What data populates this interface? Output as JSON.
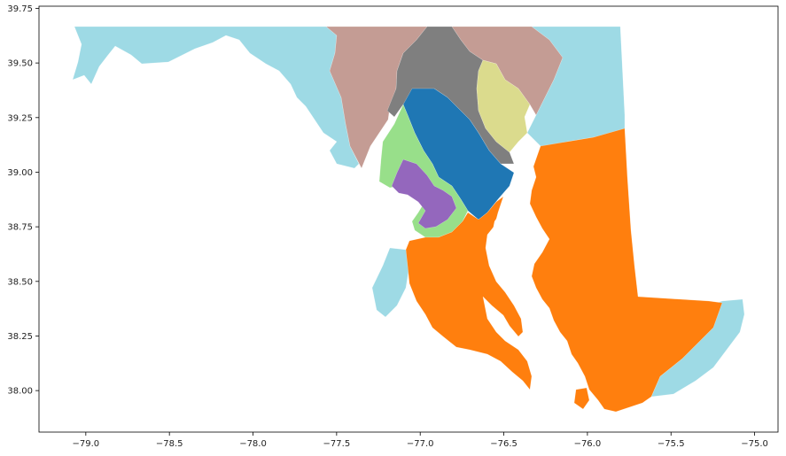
{
  "chart_data": {
    "type": "choropleth",
    "title": "",
    "xlabel": "",
    "ylabel": "",
    "xlim": [
      -79.28,
      -74.86
    ],
    "ylim": [
      37.81,
      39.76
    ],
    "xticks": [
      -79.0,
      -78.5,
      -78.0,
      -77.5,
      -77.0,
      -76.5,
      -76.0,
      -75.5,
      -75.0
    ],
    "xtick_labels": [
      "−79.0",
      "−78.5",
      "−78.0",
      "−77.5",
      "−77.0",
      "−76.5",
      "−76.0",
      "−75.5",
      "−75.0"
    ],
    "yticks": [
      38.0,
      38.25,
      38.5,
      38.75,
      39.0,
      39.25,
      39.5,
      39.75
    ],
    "ytick_labels": [
      "38.00",
      "38.25",
      "38.50",
      "38.75",
      "39.00",
      "39.25",
      "39.50",
      "39.75"
    ],
    "grid": false,
    "legend": "none",
    "regions": [
      {
        "key": "light-blue",
        "color": "#9edae5"
      },
      {
        "key": "brown",
        "color": "#c49c94"
      },
      {
        "key": "gray",
        "color": "#7f7f7f"
      },
      {
        "key": "olive",
        "color": "#dbdb8d"
      },
      {
        "key": "blue",
        "color": "#1f77b4"
      },
      {
        "key": "green",
        "color": "#98df8a"
      },
      {
        "key": "purple",
        "color": "#9467bd"
      },
      {
        "key": "orange",
        "color": "#ff7f0e"
      }
    ]
  }
}
